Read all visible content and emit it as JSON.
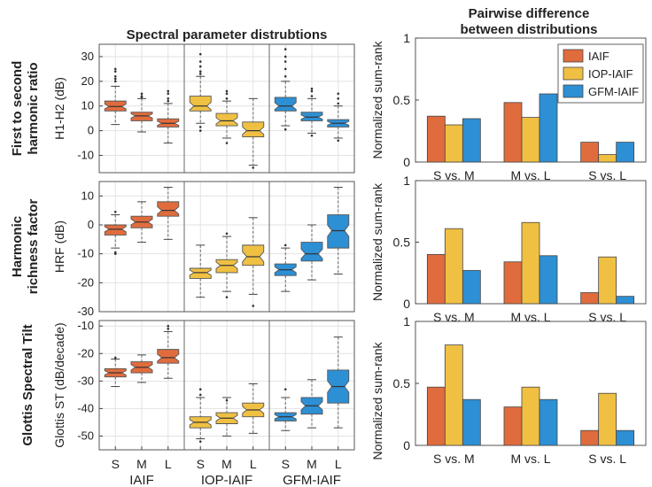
{
  "chart_data": [
    {
      "type": "box",
      "title": "Spectral parameter distrubtions",
      "row_label": "First to second harmonic ratio",
      "ylabel": "H1-H2 (dB)",
      "ylim": [
        -17,
        35
      ],
      "yticks": [
        -10,
        0,
        10,
        20,
        30
      ],
      "group_labels": [
        "IAIF",
        "IOP-IAIF",
        "GFM-IAIF"
      ],
      "category_labels": [
        "S",
        "M",
        "L"
      ],
      "colors": [
        "#e06c3d",
        "#f0c043",
        "#2d8fd4"
      ],
      "groups": [
        {
          "name": "IAIF",
          "boxes": [
            {
              "cat": "S",
              "lw": 2.5,
              "q1": 8,
              "med": 9.8,
              "q3": 12,
              "uw": 18,
              "out": [
                20,
                22,
                25,
                24,
                21
              ]
            },
            {
              "cat": "M",
              "lw": -0.5,
              "q1": 4,
              "med": 6,
              "q3": 7.5,
              "uw": 13,
              "out": [
                14,
                15,
                13.5
              ]
            },
            {
              "cat": "L",
              "lw": -5,
              "q1": 1.5,
              "med": 3,
              "q3": 4.8,
              "uw": 11,
              "out": [
                13,
                15,
                16,
                12
              ]
            }
          ]
        },
        {
          "name": "IOP-IAIF",
          "boxes": [
            {
              "cat": "S",
              "lw": 3,
              "q1": 8,
              "med": 10,
              "q3": 14,
              "uw": 22,
              "out": [
                24,
                26,
                28,
                31,
                0,
                1.5,
                23
              ]
            },
            {
              "cat": "M",
              "lw": -3,
              "q1": 2,
              "med": 4,
              "q3": 7,
              "uw": 12,
              "out": [
                13,
                15,
                16,
                -5
              ]
            },
            {
              "cat": "L",
              "lw": -14,
              "q1": -2.5,
              "med": 0,
              "q3": 3.5,
              "uw": 13,
              "out": [
                -15
              ]
            }
          ]
        },
        {
          "name": "GFM-IAIF",
          "boxes": [
            {
              "cat": "S",
              "lw": 2,
              "q1": 8,
              "med": 10,
              "q3": 13.5,
              "uw": 20,
              "out": [
                22,
                25,
                28,
                30,
                33,
                0.5
              ]
            },
            {
              "cat": "M",
              "lw": -1,
              "q1": 4,
              "med": 5.5,
              "q3": 7.5,
              "uw": 13,
              "out": [
                14,
                16,
                17,
                -2
              ]
            },
            {
              "cat": "L",
              "lw": -3,
              "q1": 1.5,
              "med": 3,
              "q3": 4.5,
              "uw": 10,
              "out": [
                11,
                13,
                15,
                -4
              ]
            }
          ]
        }
      ]
    },
    {
      "type": "box",
      "row_label": "Harmonic richness factor",
      "ylabel": "HRF (dB)",
      "ylim": [
        -30,
        15
      ],
      "yticks": [
        -30,
        -20,
        -10,
        0,
        10
      ],
      "groups": [
        {
          "name": "IAIF",
          "boxes": [
            {
              "cat": "S",
              "lw": -8,
              "q1": -3.5,
              "med": -1.5,
              "q3": 0,
              "uw": 3.5,
              "out": [
                4.5,
                -9.5,
                -10
              ]
            },
            {
              "cat": "M",
              "lw": -6,
              "q1": -1,
              "med": 1,
              "q3": 3,
              "uw": 8,
              "out": []
            },
            {
              "cat": "L",
              "lw": -5,
              "q1": 3,
              "med": 5,
              "q3": 8,
              "uw": 13,
              "out": []
            }
          ]
        },
        {
          "name": "IOP-IAIF",
          "boxes": [
            {
              "cat": "S",
              "lw": -25,
              "q1": -18.5,
              "med": -16.5,
              "q3": -15,
              "uw": -7,
              "out": []
            },
            {
              "cat": "M",
              "lw": -23,
              "q1": -16.5,
              "med": -14,
              "q3": -12,
              "uw": -4,
              "out": [
                -3,
                -25
              ]
            },
            {
              "cat": "L",
              "lw": -24,
              "q1": -14,
              "med": -11,
              "q3": -7,
              "uw": 2.5,
              "out": [
                -28
              ]
            }
          ]
        },
        {
          "name": "GFM-IAIF",
          "boxes": [
            {
              "cat": "S",
              "lw": -23,
              "q1": -17.5,
              "med": -15.5,
              "q3": -13.5,
              "uw": -8,
              "out": [
                -7
              ]
            },
            {
              "cat": "M",
              "lw": -19,
              "q1": -12.5,
              "med": -10,
              "q3": -6,
              "uw": 0,
              "out": []
            },
            {
              "cat": "L",
              "lw": -17,
              "q1": -8,
              "med": -2,
              "q3": 3.5,
              "uw": 13,
              "out": []
            }
          ]
        }
      ]
    },
    {
      "type": "box",
      "row_label": "Glottis Spectral Tilt",
      "ylabel": "Glottis ST (dB/decade)",
      "ylim": [
        -55,
        -8
      ],
      "yticks": [
        -50,
        -40,
        -30,
        -20,
        -10
      ],
      "groups": [
        {
          "name": "IAIF",
          "boxes": [
            {
              "cat": "S",
              "lw": -32,
              "q1": -28.5,
              "med": -27,
              "q3": -25.5,
              "uw": -22,
              "out": [
                -21.5
              ]
            },
            {
              "cat": "M",
              "lw": -30.5,
              "q1": -27,
              "med": -25,
              "q3": -23,
              "uw": -20.5,
              "out": []
            },
            {
              "cat": "L",
              "lw": -29,
              "q1": -23.5,
              "med": -21.5,
              "q3": -18.5,
              "uw": -12,
              "out": [
                -10,
                -11
              ]
            }
          ]
        },
        {
          "name": "IOP-IAIF",
          "boxes": [
            {
              "cat": "S",
              "lw": -51,
              "q1": -47,
              "med": -45,
              "q3": -43,
              "uw": -36,
              "out": [
                -33,
                -35,
                -52
              ]
            },
            {
              "cat": "M",
              "lw": -50,
              "q1": -45.5,
              "med": -43.5,
              "q3": -41.5,
              "uw": -36,
              "out": [
                -37
              ]
            },
            {
              "cat": "L",
              "lw": -49,
              "q1": -43,
              "med": -40.5,
              "q3": -38,
              "uw": -31,
              "out": []
            }
          ]
        },
        {
          "name": "GFM-IAIF",
          "boxes": [
            {
              "cat": "S",
              "lw": -48,
              "q1": -44.5,
              "med": -43,
              "q3": -41.5,
              "uw": -36,
              "out": [
                -33
              ]
            },
            {
              "cat": "M",
              "lw": -47,
              "q1": -42,
              "med": -39,
              "q3": -36,
              "uw": -29.5,
              "out": []
            },
            {
              "cat": "L",
              "lw": -47,
              "q1": -38,
              "med": -32,
              "q3": -26,
              "uw": -14,
              "out": []
            }
          ]
        }
      ]
    },
    {
      "type": "bar",
      "title": "Pairwise difference between distributions",
      "title_lines": [
        "Pairwise difference",
        "between distributions"
      ],
      "ylabel": "Normalized sum-rank",
      "ylim": [
        0,
        1
      ],
      "yticks": [
        0,
        0.5,
        1
      ],
      "ytick_labels": [
        "0",
        "0.5",
        "1"
      ],
      "categories": [
        "S vs. M",
        "M vs. L",
        "S vs. L"
      ],
      "legend": "top-right",
      "series": [
        {
          "name": "IAIF",
          "values": [
            0.37,
            0.48,
            0.16
          ]
        },
        {
          "name": "IOP-IAIF",
          "values": [
            0.3,
            0.36,
            0.06
          ]
        },
        {
          "name": "GFM-IAIF",
          "values": [
            0.35,
            0.55,
            0.16
          ]
        }
      ]
    },
    {
      "type": "bar",
      "ylabel": "Normalized sum-rank",
      "ylim": [
        0,
        1
      ],
      "yticks": [
        0,
        0.5,
        1
      ],
      "ytick_labels": [
        "0",
        "0.5",
        "1"
      ],
      "categories": [
        "S vs. M",
        "M vs. L",
        "S vs. L"
      ],
      "series": [
        {
          "values": [
            0.4,
            0.61,
            0.27
          ]
        },
        {
          "values": [
            0.34,
            0.66,
            0.39
          ]
        },
        {
          "values": [
            0.09,
            0.38,
            0.06
          ]
        }
      ],
      "series_layout": "per-category"
    },
    {
      "type": "bar",
      "ylabel": "Normalized sum-rank",
      "ylim": [
        0,
        1
      ],
      "yticks": [
        0,
        0.5,
        1
      ],
      "ytick_labels": [
        "0",
        "0.5",
        "1"
      ],
      "categories": [
        "S vs. M",
        "M vs. L",
        "S vs. L"
      ],
      "series": [
        {
          "values": [
            0.47,
            0.81,
            0.37
          ]
        },
        {
          "values": [
            0.31,
            0.47,
            0.37
          ]
        },
        {
          "values": [
            0.12,
            0.42,
            0.12
          ]
        }
      ],
      "series_layout": "per-category"
    }
  ]
}
